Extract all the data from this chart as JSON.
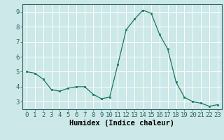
{
  "x": [
    0,
    1,
    2,
    3,
    4,
    5,
    6,
    7,
    8,
    9,
    10,
    11,
    12,
    13,
    14,
    15,
    16,
    17,
    18,
    19,
    20,
    21,
    22,
    23
  ],
  "y": [
    5.0,
    4.9,
    4.5,
    3.8,
    3.7,
    3.9,
    4.0,
    4.0,
    3.5,
    3.2,
    3.3,
    5.5,
    7.8,
    8.5,
    9.1,
    8.9,
    7.5,
    6.5,
    4.3,
    3.3,
    3.0,
    2.9,
    2.7,
    2.8
  ],
  "xlabel": "Humidex (Indice chaleur)",
  "ylim": [
    2.5,
    9.5
  ],
  "xlim": [
    -0.5,
    23.5
  ],
  "yticks": [
    3,
    4,
    5,
    6,
    7,
    8,
    9
  ],
  "xticks": [
    0,
    1,
    2,
    3,
    4,
    5,
    6,
    7,
    8,
    9,
    10,
    11,
    12,
    13,
    14,
    15,
    16,
    17,
    18,
    19,
    20,
    21,
    22,
    23
  ],
  "line_color": "#1a7a5e",
  "marker_color": "#1a7a5e",
  "bg_color": "#cce8e8",
  "grid_color": "#ffffff",
  "tick_label_fontsize": 6.5,
  "xlabel_fontsize": 7.5,
  "spine_color": "#336666"
}
